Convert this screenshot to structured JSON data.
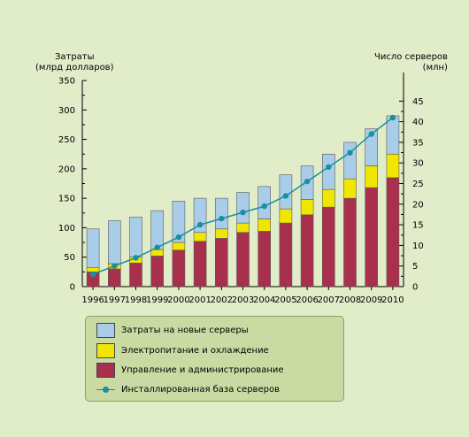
{
  "chart_data": {
    "type": "bar",
    "stacked": true,
    "categories": [
      "1996",
      "1997",
      "1998",
      "1999",
      "2000",
      "2001",
      "2002",
      "2003",
      "2004",
      "2005",
      "2006",
      "2007",
      "2008",
      "2009",
      "2010"
    ],
    "series": [
      {
        "name": "Управление и администрирование",
        "axis": "left",
        "color": "#a8304c",
        "values": [
          25,
          30,
          40,
          52,
          62,
          77,
          82,
          92,
          94,
          108,
          122,
          135,
          150,
          168,
          185
        ]
      },
      {
        "name": "Электропитание и охлаждение",
        "axis": "left",
        "color": "#f0e600",
        "values": [
          7,
          9,
          10,
          11,
          13,
          15,
          16,
          16,
          21,
          24,
          26,
          30,
          33,
          37,
          40
        ]
      },
      {
        "name": "Затраты на новые серверы",
        "axis": "left",
        "color": "#a9cde8",
        "values": [
          66,
          73,
          68,
          66,
          70,
          58,
          52,
          52,
          55,
          58,
          57,
          60,
          62,
          63,
          65
        ]
      },
      {
        "name": "Инсталлированная база серверов",
        "axis": "right",
        "type": "line",
        "color": "#1a8fa0",
        "values": [
          3,
          5,
          7,
          9.5,
          12,
          15,
          16.5,
          18,
          19.5,
          22,
          25.5,
          29,
          32.5,
          37,
          41
        ]
      }
    ],
    "ylabel": "Затраты\n(млрд долларов)",
    "y2label": "Число серверов\n(млн)",
    "ylim": [
      0,
      350
    ],
    "yticks": [
      0,
      50,
      100,
      150,
      200,
      250,
      300,
      350
    ],
    "y2lim": [
      0,
      50
    ],
    "y2ticks": [
      0,
      5,
      10,
      15,
      20,
      25,
      30,
      35,
      40,
      45
    ],
    "grid": false,
    "legend_position": "bottom",
    "legend_order": [
      "Затраты на новые серверы",
      "Электропитание и охлаждение",
      "Управление и администрирование",
      "Инсталлированная база серверов"
    ]
  }
}
